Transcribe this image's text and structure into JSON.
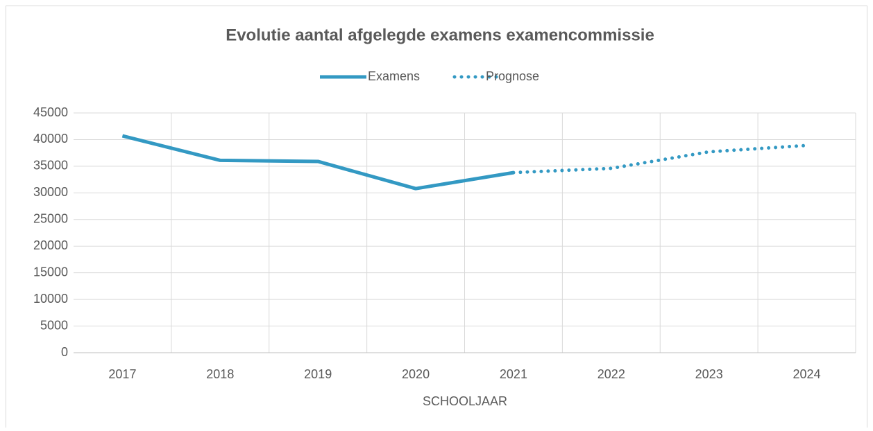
{
  "chart_data": {
    "type": "line",
    "title": "Evolutie aantal afgelegde examens examencommissie",
    "x_label": "SCHOOLJAAR",
    "categories": [
      "2017",
      "2018",
      "2019",
      "2020",
      "2021",
      "2022",
      "2023",
      "2024"
    ],
    "series": [
      {
        "name": "Examens",
        "color": "#3399c3",
        "style": "solid",
        "values": [
          40700,
          36100,
          35900,
          30800,
          33800,
          null,
          null,
          null
        ]
      },
      {
        "name": "Prognose",
        "color": "#3399c3",
        "style": "dotted",
        "values": [
          null,
          null,
          null,
          null,
          33800,
          34600,
          37700,
          38900
        ]
      }
    ],
    "ylim": [
      0,
      45000
    ],
    "yticks": [
      0,
      5000,
      10000,
      15000,
      20000,
      25000,
      30000,
      35000,
      40000,
      45000
    ],
    "grid": true,
    "legend": "top"
  }
}
